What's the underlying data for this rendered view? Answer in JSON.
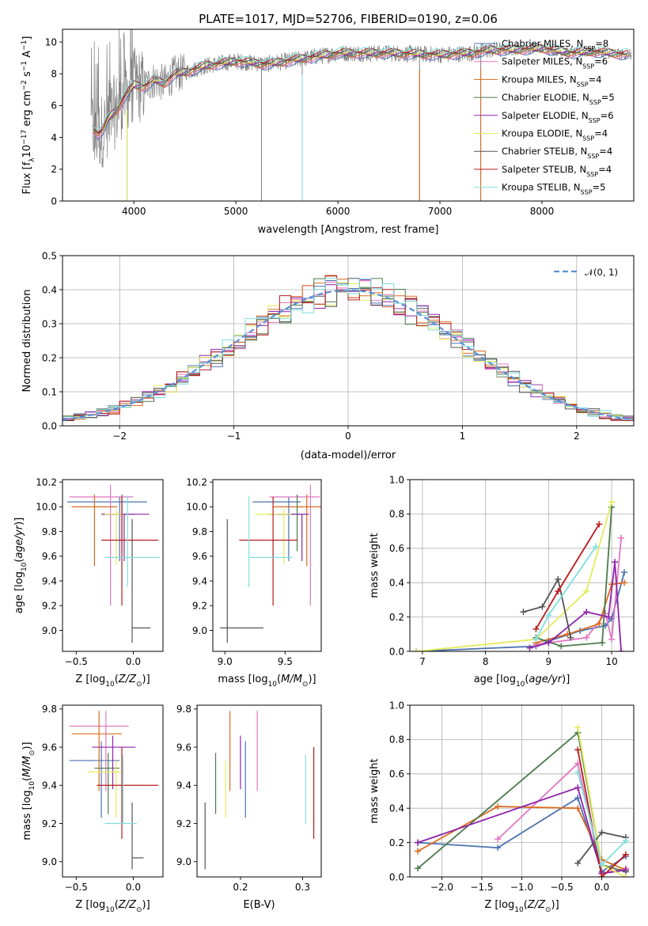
{
  "figure_title": "PLATE=1017, MJD=52706, FIBERID=0190, z=0.06",
  "models": [
    {
      "name": "Chabrier MILES",
      "nssp": "8",
      "color": "#4c72b0"
    },
    {
      "name": "Salpeter MILES",
      "nssp": "6",
      "color": "#e377c2"
    },
    {
      "name": "Kroupa MILES",
      "nssp": "4",
      "color": "#dd6b20"
    },
    {
      "name": "Chabrier ELODIE",
      "nssp": "5",
      "color": "#4a7a4a"
    },
    {
      "name": "Salpeter ELODIE",
      "nssp": "6",
      "color": "#8e24aa"
    },
    {
      "name": "Kroupa ELODIE",
      "nssp": "4",
      "color": "#e3ea5c"
    },
    {
      "name": "Chabrier STELIB",
      "nssp": "4",
      "color": "#555555"
    },
    {
      "name": "Salpeter STELIB",
      "nssp": "4",
      "color": "#b71c1c"
    },
    {
      "name": "Kroupa STELIB",
      "nssp": "5",
      "color": "#7fdfe0"
    }
  ],
  "chart_data": [
    {
      "id": "spectrum",
      "type": "line",
      "title": "PLATE=1017, MJD=52706, FIBERID=0190, z=0.06",
      "xlabel": "wavelength [Angstrom, rest frame]",
      "ylabel": "Flux [f_λ10^-17 erg cm^-2 s^-1 A^-1]",
      "xlim": [
        3300,
        8900
      ],
      "ylim": [
        0,
        10.8
      ],
      "xticks": [
        4000,
        5000,
        6000,
        7000,
        8000
      ],
      "yticks": [
        0,
        2,
        4,
        6,
        8,
        10
      ],
      "grid": false,
      "legend_position": "top-right",
      "data_color": "#808080",
      "continuum_x": [
        3600,
        3650,
        3700,
        3750,
        3800,
        3850,
        3900,
        3950,
        4000,
        4100,
        4200,
        4300,
        4400,
        4500,
        4700,
        5000,
        5300,
        5600,
        6000,
        6500,
        7000,
        7300,
        7500,
        7700,
        8000,
        8300,
        8500,
        8850
      ],
      "continuum_y": [
        4.6,
        4.2,
        4.5,
        5.2,
        5.5,
        5.9,
        6.5,
        6.9,
        7.3,
        7.2,
        7.6,
        7.4,
        8.0,
        8.1,
        8.5,
        8.8,
        8.6,
        8.9,
        9.3,
        9.3,
        9.2,
        9.3,
        9.5,
        9.5,
        9.6,
        9.3,
        9.4,
        9.2
      ],
      "absorption_lines": [
        {
          "x": 3933,
          "y": 0.0
        },
        {
          "x": 5250,
          "y": 0.0
        },
        {
          "x": 5650,
          "y": 0.0
        },
        {
          "x": 6800,
          "y": 0.0
        },
        {
          "x": 7400,
          "y": 0.0
        }
      ]
    },
    {
      "id": "residual_hist",
      "type": "bar",
      "xlabel": "(data-model)/error",
      "ylabel": "Normed distribution",
      "xlim": [
        -2.5,
        2.5
      ],
      "ylim": [
        0,
        0.5
      ],
      "xticks": [
        -2,
        -1,
        0,
        1,
        2
      ],
      "yticks": [
        0.0,
        0.1,
        0.2,
        0.3,
        0.4,
        0.5
      ],
      "grid": true,
      "legend_position": "top-right",
      "reference_label": "𝒩(0, 1)",
      "reference_color": "#5b8fd6",
      "bin_width": 0.1
    },
    {
      "id": "age_vs_Z",
      "type": "scatter",
      "xlabel": "Z [log10(Z/Z⊙)]",
      "ylabel": "age [log10(age/yr)]",
      "xlim": [
        -0.62,
        0.26
      ],
      "ylim": [
        8.83,
        10.22
      ],
      "xticks": [
        -0.5,
        0.0
      ],
      "yticks": [
        9.0,
        9.2,
        9.4,
        9.6,
        9.8,
        10.0,
        10.2
      ],
      "points": [
        {
          "model": 0,
          "x": -0.12,
          "xerr": [
            0.46,
            0.24
          ],
          "y": 10.04,
          "yerr": [
            0.48,
            0.04
          ]
        },
        {
          "model": 1,
          "x": -0.2,
          "xerr": [
            0.36,
            0.2
          ],
          "y": 10.08,
          "yerr": [
            0.88,
            0.1
          ]
        },
        {
          "model": 2,
          "x": -0.34,
          "xerr": [
            0.2,
            0.2
          ],
          "y": 10.0,
          "yerr": [
            0.48,
            0.1
          ]
        },
        {
          "model": 3,
          "x": -0.1,
          "xerr": [
            0.18,
            0.12
          ],
          "y": 9.94,
          "yerr": [
            0.3,
            0.16
          ]
        },
        {
          "model": 4,
          "x": -0.08,
          "xerr": [
            0.2,
            0.22
          ],
          "y": 9.94,
          "yerr": [
            0.38,
            0.0
          ]
        },
        {
          "model": 5,
          "x": -0.15,
          "xerr": [
            0.1,
            0.06
          ],
          "y": 9.94,
          "yerr": [
            0.4,
            0.04
          ]
        },
        {
          "model": 6,
          "x": -0.01,
          "xerr": [
            0.0,
            0.16
          ],
          "y": 9.02,
          "yerr": [
            0.12,
            0.88
          ]
        },
        {
          "model": 7,
          "x": -0.1,
          "xerr": [
            0.18,
            0.32
          ],
          "y": 9.73,
          "yerr": [
            0.53,
            0.35
          ]
        },
        {
          "model": 8,
          "x": -0.05,
          "xerr": [
            0.2,
            0.28
          ],
          "y": 9.59,
          "yerr": [
            0.24,
            0.5
          ]
        }
      ]
    },
    {
      "id": "age_vs_mass",
      "type": "scatter",
      "xlabel": "mass [log10(M/M⊙)]",
      "ylabel": "",
      "xlim": [
        8.9,
        9.8
      ],
      "ylim": [
        8.83,
        10.22
      ],
      "xticks": [
        9.0,
        9.5
      ],
      "yticks": [
        9.0,
        9.2,
        9.4,
        9.6,
        9.8,
        10.0,
        10.2
      ],
      "points": [
        {
          "model": 0,
          "x": 9.53,
          "xerr": [
            0.3,
            0.1
          ],
          "y": 10.04,
          "yerr": [
            0.48,
            0.04
          ]
        },
        {
          "model": 1,
          "x": 9.71,
          "xerr": [
            0.34,
            0.08
          ],
          "y": 10.08,
          "yerr": [
            0.88,
            0.1
          ]
        },
        {
          "model": 2,
          "x": 9.68,
          "xerr": [
            0.28,
            0.12
          ],
          "y": 10.0,
          "yerr": [
            0.48,
            0.1
          ]
        },
        {
          "model": 3,
          "x": 9.6,
          "xerr": [
            0.24,
            0.08
          ],
          "y": 9.94,
          "yerr": [
            0.3,
            0.16
          ]
        },
        {
          "model": 4,
          "x": 9.64,
          "xerr": [
            0.22,
            0.06
          ],
          "y": 9.94,
          "yerr": [
            0.38,
            0.0
          ]
        },
        {
          "model": 5,
          "x": 9.49,
          "xerr": [
            0.24,
            0.06
          ],
          "y": 9.94,
          "yerr": [
            0.4,
            0.04
          ]
        },
        {
          "model": 6,
          "x": 9.02,
          "xerr": [
            0.06,
            0.3
          ],
          "y": 9.02,
          "yerr": [
            0.12,
            0.88
          ]
        },
        {
          "model": 7,
          "x": 9.4,
          "xerr": [
            0.28,
            0.2
          ],
          "y": 9.73,
          "yerr": [
            0.53,
            0.35
          ]
        },
        {
          "model": 8,
          "x": 9.2,
          "xerr": [
            0.0,
            0.36
          ],
          "y": 9.59,
          "yerr": [
            0.24,
            0.5
          ]
        }
      ]
    },
    {
      "id": "massweight_vs_age",
      "type": "line",
      "xlabel": "age [log10(age/yr)]",
      "ylabel": "mass weight",
      "xlim": [
        6.8,
        10.35
      ],
      "ylim": [
        0.0,
        1.0
      ],
      "xticks": [
        7,
        8,
        9,
        10
      ],
      "yticks": [
        0.0,
        0.2,
        0.4,
        0.6,
        0.8,
        1.0
      ],
      "grid": true,
      "series": [
        {
          "model": 0,
          "x": [
            6.9,
            8.8,
            9.0,
            9.5,
            9.9,
            10.0,
            10.2
          ],
          "y": [
            0.0,
            0.03,
            0.06,
            0.12,
            0.15,
            0.19,
            0.46
          ]
        },
        {
          "model": 1,
          "x": [
            8.8,
            9.6,
            9.9,
            10.0,
            10.15
          ],
          "y": [
            0.04,
            0.08,
            0.22,
            0.07,
            0.66
          ]
        },
        {
          "model": 2,
          "x": [
            8.8,
            9.3,
            9.8,
            10.0,
            10.2
          ],
          "y": [
            0.05,
            0.1,
            0.16,
            0.39,
            0.4
          ]
        },
        {
          "model": 3,
          "x": [
            8.8,
            9.2,
            9.85,
            10.0
          ],
          "y": [
            0.08,
            0.03,
            0.05,
            0.84
          ]
        },
        {
          "model": 4,
          "x": [
            8.7,
            9.0,
            9.6,
            9.95,
            10.05,
            10.15
          ],
          "y": [
            0.02,
            0.05,
            0.23,
            0.2,
            0.52,
            0.0
          ]
        },
        {
          "model": 5,
          "x": [
            6.9,
            8.8,
            9.6,
            10.0
          ],
          "y": [
            0.0,
            0.07,
            0.35,
            0.87
          ]
        },
        {
          "model": 6,
          "x": [
            8.6,
            8.9,
            9.15,
            9.35
          ],
          "y": [
            0.23,
            0.26,
            0.42,
            0.08
          ]
        },
        {
          "model": 7,
          "x": [
            8.8,
            9.15,
            9.8
          ],
          "y": [
            0.13,
            0.35,
            0.74
          ]
        },
        {
          "model": 8,
          "x": [
            8.8,
            9.0,
            9.75
          ],
          "y": [
            0.07,
            0.21,
            0.61
          ]
        }
      ]
    },
    {
      "id": "mass_vs_Z",
      "type": "scatter",
      "xlabel": "Z [log10(Z/Z⊙)]",
      "ylabel": "mass [log10(M/M⊙)]",
      "xlim": [
        -0.62,
        0.26
      ],
      "ylim": [
        8.92,
        9.82
      ],
      "xticks": [
        -0.5,
        0.0
      ],
      "yticks": [
        9.0,
        9.2,
        9.4,
        9.6,
        9.8
      ],
      "points": [
        {
          "model": 0,
          "x": -0.28,
          "xerr": [
            0.28,
            0.16
          ],
          "y": 9.53,
          "yerr": [
            0.3,
            0.1
          ]
        },
        {
          "model": 1,
          "x": -0.24,
          "xerr": [
            0.32,
            0.2
          ],
          "y": 9.71,
          "yerr": [
            0.34,
            0.08
          ]
        },
        {
          "model": 2,
          "x": -0.3,
          "xerr": [
            0.24,
            0.2
          ],
          "y": 9.67,
          "yerr": [
            0.3,
            0.12
          ]
        },
        {
          "model": 3,
          "x": -0.22,
          "xerr": [
            0.12,
            0.1
          ],
          "y": 9.49,
          "yerr": [
            0.24,
            0.08
          ]
        },
        {
          "model": 4,
          "x": -0.18,
          "xerr": [
            0.18,
            0.2
          ],
          "y": 9.6,
          "yerr": [
            0.22,
            0.06
          ]
        },
        {
          "model": 5,
          "x": -0.15,
          "xerr": [
            0.25,
            0.04
          ],
          "y": 9.47,
          "yerr": [
            0.24,
            0.06
          ]
        },
        {
          "model": 6,
          "x": -0.01,
          "xerr": [
            0.0,
            0.1
          ],
          "y": 9.02,
          "yerr": [
            0.06,
            0.29
          ]
        },
        {
          "model": 7,
          "x": -0.1,
          "xerr": [
            0.22,
            0.32
          ],
          "y": 9.4,
          "yerr": [
            0.28,
            0.2
          ]
        },
        {
          "model": 8,
          "x": -0.09,
          "xerr": [
            0.16,
            0.12
          ],
          "y": 9.2,
          "yerr": [
            0.0,
            0.36
          ]
        }
      ]
    },
    {
      "id": "mass_vs_EBV",
      "type": "scatter",
      "xlabel": "E(B-V)",
      "ylabel": "",
      "xlim": [
        0.13,
        0.33
      ],
      "ylim": [
        8.92,
        9.82
      ],
      "xticks": [
        0.1,
        0.2,
        0.3
      ],
      "yticks": [
        9.0,
        9.2,
        9.4,
        9.6,
        9.8
      ],
      "points": [
        {
          "model": 0,
          "x": 0.208,
          "y": 9.53,
          "yerr": [
            0.3,
            0.1
          ]
        },
        {
          "model": 1,
          "x": 0.227,
          "y": 9.71,
          "yerr": [
            0.34,
            0.08
          ]
        },
        {
          "model": 2,
          "x": 0.183,
          "y": 9.67,
          "yerr": [
            0.3,
            0.12
          ]
        },
        {
          "model": 3,
          "x": 0.16,
          "y": 9.49,
          "yerr": [
            0.24,
            0.08
          ]
        },
        {
          "model": 4,
          "x": 0.2,
          "y": 9.6,
          "yerr": [
            0.22,
            0.06
          ]
        },
        {
          "model": 5,
          "x": 0.176,
          "y": 9.47,
          "yerr": [
            0.24,
            0.06
          ]
        },
        {
          "model": 6,
          "x": 0.143,
          "y": 9.02,
          "yerr": [
            0.06,
            0.29
          ]
        },
        {
          "model": 7,
          "x": 0.318,
          "y": 9.4,
          "yerr": [
            0.28,
            0.2
          ]
        },
        {
          "model": 8,
          "x": 0.305,
          "y": 9.2,
          "yerr": [
            0.0,
            0.36
          ]
        }
      ]
    },
    {
      "id": "massweight_vs_Z",
      "type": "line",
      "xlabel": "Z [log10(Z/Z⊙)]",
      "ylabel": "mass weight",
      "xlim": [
        -2.4,
        0.4
      ],
      "ylim": [
        0.0,
        1.0
      ],
      "xticks": [
        -2.0,
        -1.5,
        -1.0,
        -0.5,
        0.0
      ],
      "yticks": [
        0.0,
        0.2,
        0.4,
        0.6,
        0.8,
        1.0
      ],
      "grid": true,
      "series": [
        {
          "model": 0,
          "x": [
            -2.3,
            -1.3,
            -0.3,
            0.0,
            0.3
          ],
          "y": [
            0.2,
            0.17,
            0.46,
            0.03,
            0.12
          ]
        },
        {
          "model": 1,
          "x": [
            -1.3,
            -0.3,
            0.0,
            0.3
          ],
          "y": [
            0.22,
            0.66,
            0.02,
            0.05
          ]
        },
        {
          "model": 2,
          "x": [
            -2.3,
            -1.3,
            -0.3,
            0.0,
            0.3
          ],
          "y": [
            0.15,
            0.41,
            0.4,
            0.1,
            0.04
          ]
        },
        {
          "model": 3,
          "x": [
            -2.3,
            -0.3,
            0.0,
            0.3
          ],
          "y": [
            0.05,
            0.84,
            0.07,
            0.03
          ]
        },
        {
          "model": 4,
          "x": [
            -2.3,
            -0.3,
            0.0,
            0.3
          ],
          "y": [
            0.2,
            0.52,
            0.02,
            0.04
          ]
        },
        {
          "model": 5,
          "x": [
            -0.3,
            0.0,
            0.3
          ],
          "y": [
            0.87,
            0.07,
            0.0
          ]
        },
        {
          "model": 6,
          "x": [
            -0.3,
            0.0,
            0.3
          ],
          "y": [
            0.08,
            0.26,
            0.23
          ]
        },
        {
          "model": 7,
          "x": [
            -0.3,
            0.0,
            0.3
          ],
          "y": [
            0.74,
            0.0,
            0.13
          ]
        },
        {
          "model": 8,
          "x": [
            -0.3,
            0.0,
            0.3
          ],
          "y": [
            0.61,
            0.07,
            0.21
          ]
        }
      ]
    }
  ]
}
